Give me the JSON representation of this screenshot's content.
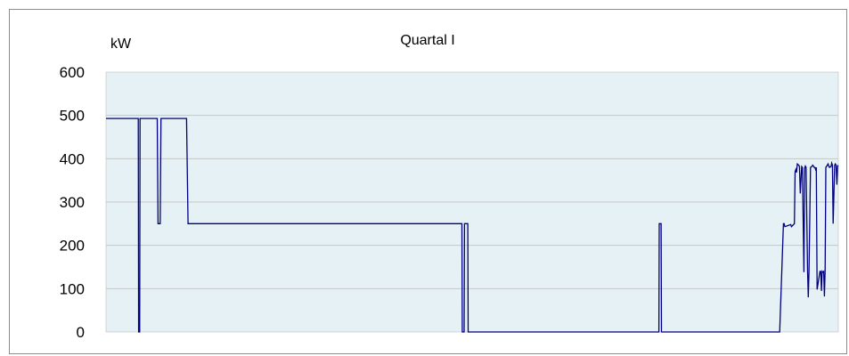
{
  "chart_data": {
    "type": "line",
    "title": "Quartal I",
    "ylabel": "kW",
    "xlabel": "",
    "ylim": [
      0,
      600
    ],
    "yticks": [
      "0",
      "100",
      "200",
      "300",
      "400",
      "500",
      "600"
    ],
    "x_range": [
      0,
      1000
    ],
    "grid": true,
    "legend": "none",
    "colors": {
      "plot_background": "#e5f1f5",
      "line": "#000080",
      "grid": "#c6c6c6"
    },
    "series": [
      {
        "x": [
          0,
          44,
          44.5,
          46,
          46.5,
          70,
          71,
          74,
          75,
          110,
          112,
          115,
          116,
          486,
          486.5,
          489,
          489.5,
          494,
          494.5,
          755,
          755.5,
          758,
          758.5,
          920,
          925,
          926,
          927,
          935,
          936,
          940,
          941,
          942,
          943,
          944,
          946,
          947,
          948,
          950,
          951,
          953,
          954,
          955,
          956,
          958,
          959,
          960,
          962,
          964,
          965,
          966,
          967,
          968,
          969,
          970,
          971,
          975,
          976,
          977,
          978,
          979,
          980,
          981,
          982,
          983,
          985,
          986,
          987,
          988,
          990,
          991,
          992,
          993,
          995,
          996,
          997,
          998,
          999,
          1000
        ],
        "y": [
          493,
          493,
          0,
          0,
          493,
          493,
          250,
          250,
          493,
          493,
          250,
          250,
          250,
          250,
          0,
          0,
          250,
          250,
          0,
          0,
          250,
          250,
          0,
          0,
          250,
          250,
          243,
          248,
          243,
          250,
          370,
          375,
          368,
          388,
          385,
          382,
          320,
          382,
          380,
          138,
          378,
          383,
          380,
          140,
          80,
          140,
          380,
          382,
          385,
          383,
          380,
          380,
          375,
          380,
          98,
          140,
          140,
          95,
          140,
          138,
          140,
          82,
          140,
          380,
          385,
          388,
          383,
          380,
          382,
          390,
          385,
          250,
          385,
          388,
          385,
          340,
          383,
          385
        ]
      }
    ]
  }
}
